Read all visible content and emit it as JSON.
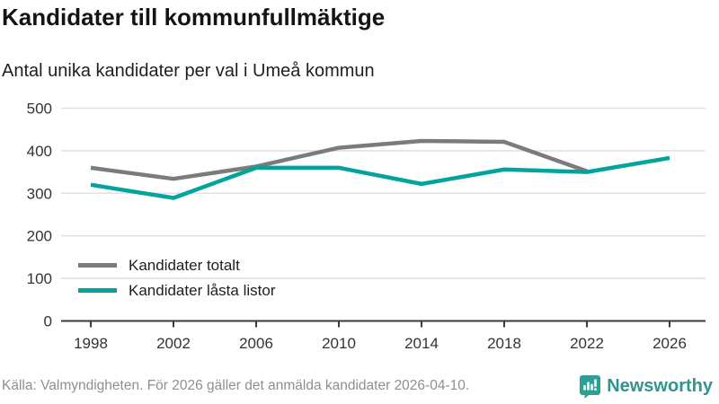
{
  "header": {
    "title": "Kandidater till kommunfullmäktige",
    "subtitle": "Antal unika kandidater per val i Umeå kommun"
  },
  "chart_data": {
    "type": "line",
    "x": [
      1998,
      2002,
      2006,
      2010,
      2014,
      2018,
      2022,
      2026
    ],
    "series": [
      {
        "name": "Kandidater totalt",
        "color": "#7b7b7b",
        "values": [
          360,
          334,
          363,
          407,
          423,
          421,
          352,
          null
        ]
      },
      {
        "name": "Kandidater låsta listor",
        "color": "#00a49b",
        "values": [
          320,
          289,
          360,
          360,
          322,
          356,
          350,
          383
        ]
      }
    ],
    "title": "Kandidater till kommunfullmäktige",
    "subtitle": "Antal unika kandidater per val i Umeå kommun",
    "xlabel": "",
    "ylabel": "",
    "ylim": [
      0,
      500
    ],
    "yticks": [
      0,
      100,
      200,
      300,
      400,
      500
    ],
    "grid": "horizontal",
    "legend_position": "inside-bottom-left"
  },
  "footer": {
    "source": "Källa: Valmyndigheten. För 2026 gäller det anmälda kandidater 2026-04-10.",
    "brand": "Newsworthy"
  },
  "colors": {
    "brand_teal": "#2f9e95",
    "line_gray": "#7b7b7b",
    "line_teal": "#00a49b",
    "grid": "#e1e1e1",
    "axis": "#3a3a3a",
    "tick_text": "#333333"
  }
}
